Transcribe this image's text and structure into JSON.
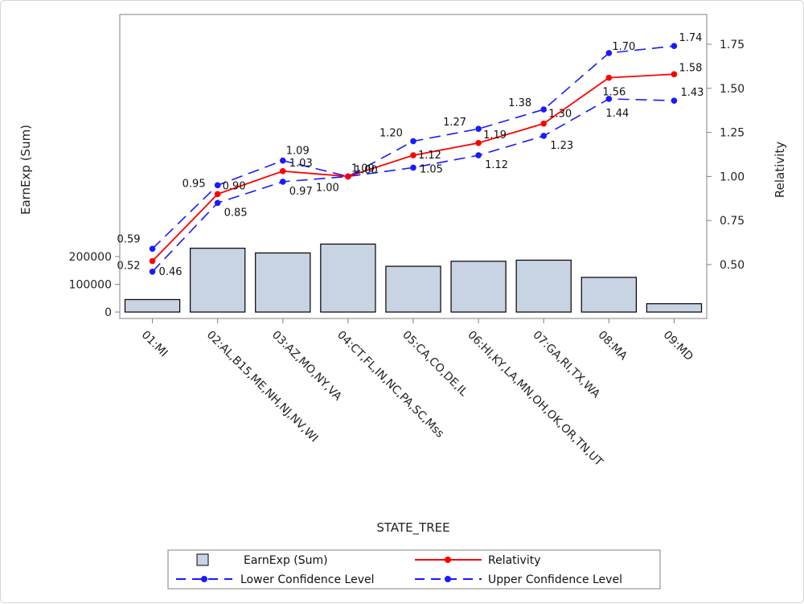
{
  "chart_data": {
    "type": "bar",
    "categories": [
      "01:MI",
      "02:AL,B15,ME,NH,NJ,NV,WI",
      "03:AZ,MO,NY,VA",
      "04:CT,FL,IN,NC,PA,SC,Mss",
      "05:CA,CO,DE,IL",
      "06:HI,KY,LA,MN,OH,OK,OR,TN,UT",
      "07:GA,RI,TX,WA",
      "08:MA",
      "09:MD"
    ],
    "xlabel": "STATE_TREE",
    "ylabel": "EarnExp (Sum)",
    "y2label": "Relativity",
    "ylim": [
      0,
      200000
    ],
    "yticks": [
      "0",
      "100000",
      "200000"
    ],
    "y2lim": [
      0.25,
      1.9
    ],
    "y2ticks": [
      "0.50",
      "0.75",
      "1.00",
      "1.25",
      "1.50",
      "1.75"
    ],
    "grid": false,
    "legend_position": "bottom",
    "series": [
      {
        "name": "EarnExp (Sum)",
        "type": "bar",
        "axis": "left",
        "color": "#c8d3e3",
        "values": [
          45000,
          230000,
          213000,
          245000,
          165000,
          183000,
          187000,
          125000,
          30000
        ]
      },
      {
        "name": "Relativity",
        "type": "line",
        "axis": "right",
        "color": "#ff0000",
        "values": [
          0.52,
          0.9,
          1.03,
          1.0,
          1.12,
          1.19,
          1.3,
          1.56,
          1.58
        ],
        "labels": [
          "0.52",
          "0.90",
          "1.03",
          "1.00",
          "1.12",
          "1.19",
          "1.30",
          "1.56",
          "1.58"
        ]
      },
      {
        "name": "Lower Confidence Level",
        "type": "line",
        "axis": "right",
        "color": "#1a1aff",
        "dash": true,
        "values": [
          0.46,
          0.85,
          0.97,
          1.0,
          1.05,
          1.12,
          1.23,
          1.44,
          1.43
        ],
        "labels": [
          "0.46",
          "0.85",
          "0.97",
          "1.00",
          "1.05",
          "1.12",
          "1.23",
          "1.44",
          "1.43"
        ]
      },
      {
        "name": "Upper Confidence Level",
        "type": "line",
        "axis": "right",
        "color": "#1a1aff",
        "dash": true,
        "values": [
          0.59,
          0.95,
          1.09,
          1.0,
          1.2,
          1.27,
          1.38,
          1.7,
          1.74
        ],
        "labels": [
          "0.59",
          "0.95",
          "1.09",
          "1.00",
          "1.20",
          "1.27",
          "1.38",
          "1.70",
          "1.74"
        ]
      }
    ]
  }
}
